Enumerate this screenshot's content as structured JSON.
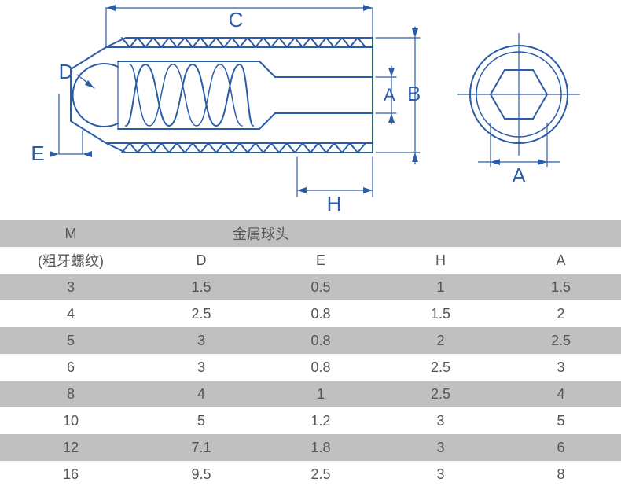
{
  "diagram": {
    "type": "engineering-diagram",
    "stroke_color": "#2a5caa",
    "stroke_width": 2,
    "thin_stroke_width": 1.2,
    "background": "#ffffff",
    "text_color": "#555555",
    "labels": {
      "C": "C",
      "D": "D",
      "E": "E",
      "A": "A",
      "B": "B",
      "H": "H",
      "A2": "A"
    },
    "label_fontsize": 26
  },
  "table": {
    "type": "table",
    "header_row1": {
      "M": "M",
      "metal_ball": "金属球头",
      "blank1": "",
      "blank2": ""
    },
    "header_row2": {
      "M": "(粗牙螺纹)",
      "D": "D",
      "E": "E",
      "H": "H",
      "A": "A"
    },
    "columns": [
      "M",
      "D",
      "E",
      "H",
      "A"
    ],
    "rows": [
      {
        "M": "3",
        "D": "1.5",
        "E": "0.5",
        "H": "1",
        "A": "1.5"
      },
      {
        "M": "4",
        "D": "2.5",
        "E": "0.8",
        "H": "1.5",
        "A": "2"
      },
      {
        "M": "5",
        "D": "3",
        "E": "0.8",
        "H": "2",
        "A": "2.5"
      },
      {
        "M": "6",
        "D": "3",
        "E": "0.8",
        "H": "2.5",
        "A": "3"
      },
      {
        "M": "8",
        "D": "4",
        "E": "1",
        "H": "2.5",
        "A": "4"
      },
      {
        "M": "10",
        "D": "5",
        "E": "1.2",
        "H": "3",
        "A": "5"
      },
      {
        "M": "12",
        "D": "7.1",
        "E": "1.8",
        "H": "3",
        "A": "6"
      },
      {
        "M": "16",
        "D": "9.5",
        "E": "2.5",
        "H": "3",
        "A": "8"
      }
    ],
    "row_colors": {
      "even": "#c0c0c0",
      "odd": "#ffffff"
    },
    "header_bg": "#c0c0c0",
    "font_size": 18,
    "text_color": "#555555"
  }
}
